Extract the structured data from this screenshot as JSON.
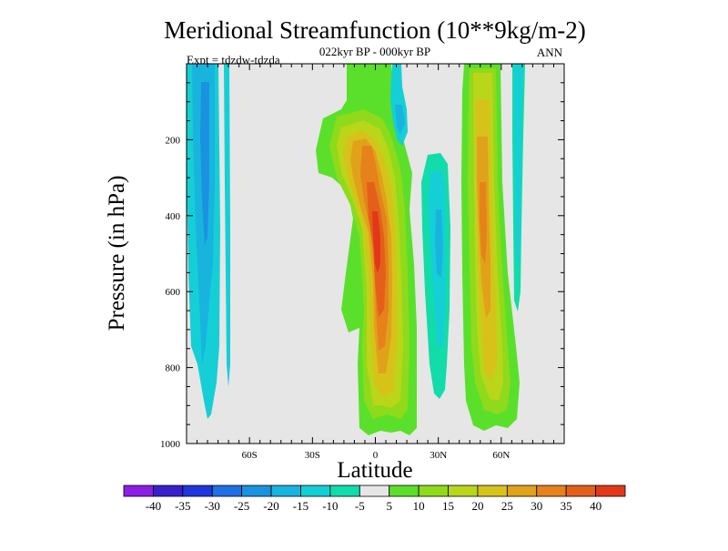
{
  "chart_data": {
    "type": "contour",
    "title": "Meridional Streamfunction (10**9kg/m-2)",
    "subtitle": "022kyr BP - 000kyr BP",
    "left_label": "Expt = tdzdw-tdzda",
    "right_label": "ANN",
    "xlabel": "Latitude",
    "ylabel": "Pressure (in hPa)",
    "xlim": [
      -90,
      90
    ],
    "ylim": [
      1000,
      0
    ],
    "x_ticks": [
      {
        "value": -60,
        "label": "60S"
      },
      {
        "value": -30,
        "label": "30S"
      },
      {
        "value": 0,
        "label": "0"
      },
      {
        "value": 30,
        "label": "30N"
      },
      {
        "value": 60,
        "label": "60N"
      }
    ],
    "y_ticks": [
      {
        "value": 200,
        "label": "200"
      },
      {
        "value": 400,
        "label": "400"
      },
      {
        "value": 600,
        "label": "600"
      },
      {
        "value": 800,
        "label": "800"
      },
      {
        "value": 1000,
        "label": "1000"
      }
    ],
    "colorbar": {
      "levels": [
        "-40",
        "-35",
        "-30",
        "-25",
        "-20",
        "-15",
        "-10",
        "-5",
        "5",
        "10",
        "15",
        "20",
        "25",
        "30",
        "35",
        "40"
      ],
      "colors": [
        "#8c1ee6",
        "#3a1fcc",
        "#2036dd",
        "#1f6fe5",
        "#1a92e0",
        "#19b4de",
        "#15cfd6",
        "#11dcaa",
        "#e6e6e6",
        "#5ae02a",
        "#8fda1a",
        "#b9d61a",
        "#d7c21a",
        "#e0a21a",
        "#e5821a",
        "#e4601a",
        "#e1381a"
      ]
    },
    "background_color": "#e6e6e6",
    "features": [
      {
        "name": "sh-polar-negative-cell",
        "sign": "negative",
        "lat_range": [
          -86,
          -72
        ],
        "p_range": [
          0,
          930
        ],
        "peak": -22
      },
      {
        "name": "sh-high-lat-negative-strip",
        "sign": "negative",
        "lat_range": [
          -70,
          -68
        ],
        "p_range": [
          0,
          790
        ],
        "peak": -12
      },
      {
        "name": "tropical-positive-cell",
        "sign": "positive",
        "lat_range": [
          -30,
          22
        ],
        "p_range": [
          0,
          980
        ],
        "peak": 38
      },
      {
        "name": "nh-upper-negative-cell",
        "sign": "negative",
        "lat_range": [
          9,
          17
        ],
        "p_range": [
          0,
          270
        ],
        "peak": -15
      },
      {
        "name": "nh-subtropical-negative-cell",
        "sign": "negative",
        "lat_range": [
          23,
          41
        ],
        "p_range": [
          280,
          880
        ],
        "peak": -22
      },
      {
        "name": "nh-midlat-positive-cell",
        "sign": "positive",
        "lat_range": [
          48,
          70
        ],
        "p_range": [
          0,
          970
        ],
        "peak": 30
      },
      {
        "name": "nh-high-lat-negative-strip",
        "sign": "negative",
        "lat_range": [
          70,
          77
        ],
        "p_range": [
          0,
          640
        ],
        "peak": -12
      }
    ]
  }
}
